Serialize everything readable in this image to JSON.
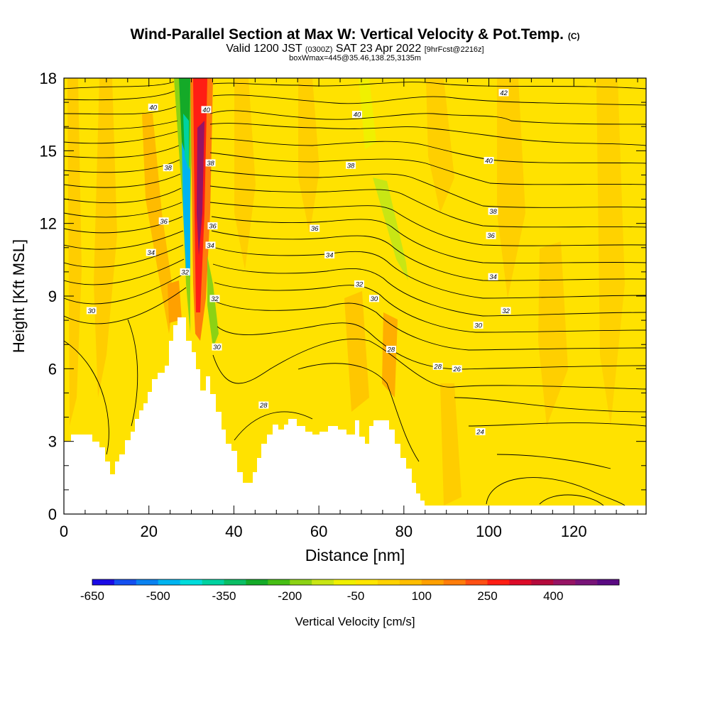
{
  "chart_data": {
    "type": "heatmap",
    "title": "Wind-Parallel Section at Max W: Vertical Velocity & Pot.Temp.",
    "title_suffix": "(C)",
    "subtitle": {
      "main_a": "Valid 1200 JST",
      "small_a": "(0300Z)",
      "main_b": "SAT 23 Apr 2022",
      "small_b": "[9hrFcst@2216z]"
    },
    "info_line": "boxWmax=445@35.46,138.25,3135m",
    "xlabel": "Distance [nm]",
    "ylabel": "Height [Kft MSL]",
    "xlim": [
      0,
      137
    ],
    "ylim": [
      0,
      18
    ],
    "x_ticks": [
      "0",
      "20",
      "40",
      "60",
      "80",
      "100",
      "120"
    ],
    "y_ticks": [
      "0",
      "3",
      "6",
      "9",
      "12",
      "15",
      "18"
    ],
    "colorbar": {
      "label": "Vertical Velocity [cm/s]",
      "tick_labels": [
        "-650",
        "-500",
        "-350",
        "-200",
        "-50",
        "100",
        "250",
        "400"
      ],
      "colors": [
        "#1a0ae6",
        "#1450f0",
        "#0a82f0",
        "#00b4f0",
        "#00dcdc",
        "#00d2a0",
        "#0abe64",
        "#14aa28",
        "#46be14",
        "#8cd214",
        "#c8e614",
        "#f0f000",
        "#ffe600",
        "#ffd200",
        "#ffbe00",
        "#ffa000",
        "#ff7d0a",
        "#ff5014",
        "#ff1e14",
        "#dc0a28",
        "#b40a3c",
        "#961464",
        "#781478",
        "#5a0a82"
      ]
    },
    "theta_contour_labels": [
      {
        "label": "40",
        "x": 21,
        "y": 16.8
      },
      {
        "label": "40",
        "x": 33.5,
        "y": 16.7
      },
      {
        "label": "40",
        "x": 69,
        "y": 16.5
      },
      {
        "label": "42",
        "x": 103.5,
        "y": 17.4
      },
      {
        "label": "40",
        "x": 100,
        "y": 14.6
      },
      {
        "label": "38",
        "x": 24.5,
        "y": 14.3
      },
      {
        "label": "38",
        "x": 34.5,
        "y": 14.5
      },
      {
        "label": "38",
        "x": 67.5,
        "y": 14.4
      },
      {
        "label": "38",
        "x": 101,
        "y": 12.5
      },
      {
        "label": "36",
        "x": 23.5,
        "y": 12.1
      },
      {
        "label": "36",
        "x": 35,
        "y": 11.9
      },
      {
        "label": "36",
        "x": 59,
        "y": 11.8
      },
      {
        "label": "36",
        "x": 100.5,
        "y": 11.5
      },
      {
        "label": "34",
        "x": 20.5,
        "y": 10.8
      },
      {
        "label": "34",
        "x": 34.5,
        "y": 11.1
      },
      {
        "label": "34",
        "x": 62.5,
        "y": 10.7
      },
      {
        "label": "34",
        "x": 101,
        "y": 9.8
      },
      {
        "label": "32",
        "x": 28.5,
        "y": 10.0
      },
      {
        "label": "32",
        "x": 35.5,
        "y": 8.9
      },
      {
        "label": "32",
        "x": 69.5,
        "y": 9.5
      },
      {
        "label": "32",
        "x": 104,
        "y": 8.4
      },
      {
        "label": "30",
        "x": 6.5,
        "y": 8.4
      },
      {
        "label": "30",
        "x": 73,
        "y": 8.9
      },
      {
        "label": "30",
        "x": 97.5,
        "y": 7.8
      },
      {
        "label": "30",
        "x": 36,
        "y": 6.9
      },
      {
        "label": "28",
        "x": 77,
        "y": 6.8
      },
      {
        "label": "28",
        "x": 88,
        "y": 6.1
      },
      {
        "label": "26",
        "x": 92.5,
        "y": 6.0
      },
      {
        "label": "28",
        "x": 47,
        "y": 4.5
      },
      {
        "label": "24",
        "x": 98,
        "y": 3.4
      }
    ]
  }
}
